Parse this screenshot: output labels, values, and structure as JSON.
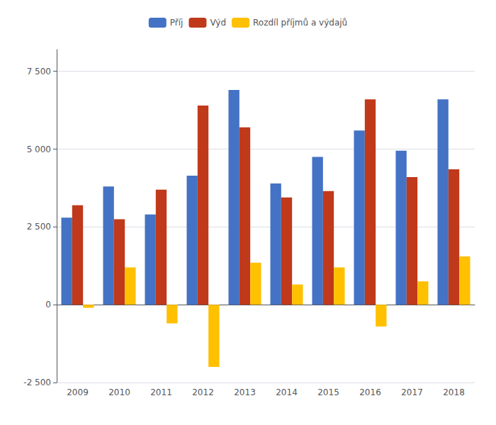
{
  "chart_data": {
    "type": "bar",
    "categories": [
      "2009",
      "2010",
      "2011",
      "2012",
      "2013",
      "2014",
      "2015",
      "2016",
      "2017",
      "2018"
    ],
    "series": [
      {
        "name": "Příj",
        "color": "#4472C4",
        "values": [
          2800,
          3800,
          2900,
          4150,
          6900,
          3900,
          4750,
          5600,
          4950,
          6600
        ]
      },
      {
        "name": "Výd",
        "color": "#C0391B",
        "values": [
          3200,
          2750,
          3700,
          6400,
          5700,
          3450,
          3650,
          6600,
          4100,
          4350
        ]
      },
      {
        "name": "Rozdíl příjmů a výdajů",
        "color": "#FFC000",
        "values": [
          -100,
          1200,
          -600,
          -2000,
          1350,
          650,
          1200,
          -700,
          750,
          1550
        ]
      }
    ],
    "ylim": [
      -2500,
      8200
    ],
    "yticks": [
      {
        "value": -2500,
        "label": "-2 500"
      },
      0,
      {
        "value": 2500,
        "label": "2 500"
      },
      {
        "value": 5000,
        "label": "5 000"
      },
      {
        "value": 7500,
        "label": "7 500"
      }
    ],
    "grid": true,
    "legend": "top"
  }
}
